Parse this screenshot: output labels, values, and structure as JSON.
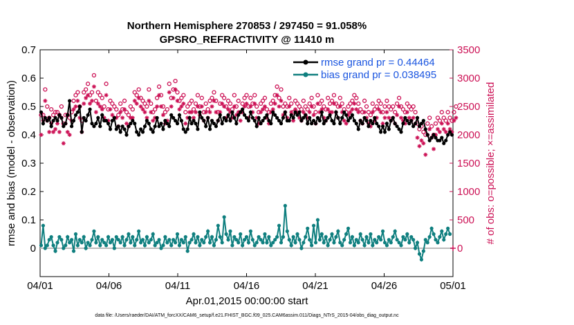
{
  "chart_data": {
    "type": "line",
    "title_line1": "Northern Hemisphere 270853 / 297450 = 91.058%",
    "title_line2": "GPSRO_REFRACTIVITY @ 11410 m",
    "xlabel": "Apr.01,2015 00:00:00 start",
    "ylabel": "rmse and bias (model - observation)",
    "ylabel_right": "# of obs: o=possible; ×=assimilated",
    "footer": "data file: /Users/raeder/DAI/ATM_forcXX/CAM6_setup/f.e21.FHIST_BGC.f09_025.CAM6assim.011/Diags_NTrS_2015-04/obs_diag_output.nc",
    "x_ticks": [
      "04/01",
      "04/06",
      "04/11",
      "04/16",
      "04/21",
      "04/26",
      "05/01"
    ],
    "xlim": [
      0,
      30
    ],
    "ylim": [
      -0.1,
      0.7
    ],
    "y_ticks": [
      "0",
      "0.1",
      "0.2",
      "0.3",
      "0.4",
      "0.5",
      "0.6",
      "0.7"
    ],
    "ylim_right": [
      -500,
      3500
    ],
    "y_ticks_right": [
      "0",
      "500",
      "1000",
      "1500",
      "2000",
      "2500",
      "3000",
      "3500"
    ],
    "legend": {
      "rmse_label": "rmse grand pr = 0.44464",
      "bias_label": "bias grand pr = 0.038495",
      "position": "top-right"
    },
    "colors": {
      "rmse": "#000000",
      "bias": "#0f7f7f",
      "obs": "#cc1155",
      "zero_line": "#bbbbbb"
    },
    "series": [
      {
        "name": "rmse",
        "values": [
          0.48,
          0.44,
          0.46,
          0.45,
          0.46,
          0.43,
          0.45,
          0.46,
          0.45,
          0.47,
          0.46,
          0.43,
          0.44,
          0.47,
          0.52,
          0.43,
          0.45,
          0.47,
          0.48,
          0.5,
          0.41,
          0.46,
          0.45,
          0.47,
          0.49,
          0.44,
          0.43,
          0.44,
          0.46,
          0.43,
          0.47,
          0.45,
          0.45,
          0.44,
          0.42,
          0.45,
          0.46,
          0.42,
          0.43,
          0.41,
          0.43,
          0.42,
          0.4,
          0.43,
          0.44,
          0.45,
          0.44,
          0.41,
          0.4,
          0.42,
          0.41,
          0.43,
          0.45,
          0.44,
          0.42,
          0.41,
          0.43,
          0.46,
          0.43,
          0.44,
          0.42,
          0.45,
          0.44,
          0.43,
          0.47,
          0.46,
          0.45,
          0.44,
          0.47,
          0.45,
          0.42,
          0.41,
          0.42,
          0.46,
          0.44,
          0.45,
          0.44,
          0.42,
          0.48,
          0.46,
          0.45,
          0.43,
          0.46,
          0.42,
          0.45,
          0.44,
          0.43,
          0.45,
          0.47,
          0.44,
          0.46,
          0.45,
          0.47,
          0.45,
          0.48,
          0.46,
          0.44,
          0.47,
          0.48,
          0.49,
          0.47,
          0.46,
          0.45,
          0.48,
          0.46,
          0.45,
          0.43,
          0.46,
          0.44,
          0.45,
          0.46,
          0.47,
          0.45,
          0.44,
          0.48,
          0.47,
          0.46,
          0.45,
          0.44,
          0.46,
          0.48,
          0.45,
          0.45,
          0.47,
          0.46,
          0.48,
          0.47,
          0.48,
          0.45,
          0.46,
          0.47,
          0.44,
          0.46,
          0.44,
          0.45,
          0.44,
          0.46,
          0.45,
          0.48,
          0.44,
          0.45,
          0.46,
          0.47,
          0.45,
          0.44,
          0.48,
          0.46,
          0.44,
          0.46,
          0.48,
          0.47,
          0.45,
          0.46,
          0.47,
          0.45,
          0.44,
          0.42,
          0.45,
          0.44,
          0.46,
          0.45,
          0.43,
          0.45,
          0.44,
          0.46,
          0.44,
          0.43,
          0.41,
          0.43,
          0.41,
          0.44,
          0.42,
          0.45,
          0.46,
          0.44,
          0.43,
          0.42,
          0.41,
          0.44,
          0.46,
          0.45,
          0.44,
          0.45,
          0.43,
          0.44,
          0.46,
          0.43,
          0.44,
          0.45,
          0.42,
          0.4,
          0.38,
          0.39,
          0.4,
          0.39,
          0.38,
          0.38,
          0.39,
          0.37,
          0.38,
          0.4,
          0.41,
          0.4
        ]
      },
      {
        "name": "bias",
        "values": [
          0.01,
          0.08,
          0.0,
          0.01,
          0.03,
          0.04,
          0.01,
          -0.01,
          0.02,
          0.04,
          0.03,
          0.0,
          0.01,
          0.04,
          0.02,
          0.03,
          -0.01,
          0.05,
          0.01,
          0.03,
          0.02,
          0.04,
          0.0,
          0.02,
          0.01,
          0.03,
          0.06,
          0.02,
          0.04,
          0.01,
          0.03,
          0.02,
          0.01,
          0.04,
          0.02,
          0.03,
          0.0,
          0.04,
          0.03,
          0.02,
          0.04,
          0.01,
          0.03,
          0.05,
          0.02,
          0.04,
          0.01,
          0.03,
          0.06,
          0.02,
          0.03,
          0.01,
          0.04,
          0.02,
          0.03,
          0.05,
          0.01,
          0.02,
          0.03,
          0.0,
          0.01,
          0.04,
          0.02,
          0.03,
          0.01,
          0.03,
          0.02,
          0.05,
          0.01,
          0.03,
          0.02,
          0.04,
          -0.01,
          0.02,
          0.03,
          0.05,
          0.02,
          0.04,
          0.01,
          0.03,
          0.02,
          0.04,
          0.06,
          0.02,
          0.04,
          0.01,
          0.03,
          0.08,
          0.04,
          0.02,
          0.11,
          0.05,
          0.03,
          0.06,
          0.01,
          0.04,
          0.03,
          0.02,
          0.05,
          0.01,
          0.03,
          0.04,
          0.02,
          0.06,
          0.03,
          0.01,
          0.02,
          0.04,
          0.03,
          0.02,
          0.05,
          0.02,
          0.04,
          0.01,
          0.02,
          0.03,
          0.04,
          0.08,
          0.02,
          0.04,
          0.15,
          0.06,
          0.03,
          0.01,
          0.04,
          0.02,
          0.05,
          0.03,
          0.0,
          0.02,
          0.04,
          0.07,
          0.03,
          0.01,
          0.08,
          0.02,
          0.1,
          0.03,
          0.05,
          0.02,
          0.04,
          0.01,
          0.03,
          0.05,
          0.02,
          0.04,
          0.06,
          0.02,
          0.01,
          0.03,
          0.05,
          0.07,
          0.02,
          0.04,
          0.01,
          0.03,
          0.02,
          0.05,
          0.03,
          0.01,
          0.04,
          0.02,
          0.05,
          0.01,
          0.03,
          0.02,
          0.04,
          0.03,
          0.06,
          0.02,
          0.01,
          0.03,
          0.02,
          0.04,
          0.06,
          0.03,
          0.02,
          0.01,
          0.04,
          0.03,
          0.05,
          0.02,
          0.04,
          0.03,
          0.0,
          0.02,
          -0.02,
          -0.04,
          -0.01,
          0.03,
          0.02,
          0.04,
          0.07,
          0.05,
          0.03,
          0.02,
          0.04,
          0.06,
          0.03,
          0.05,
          0.07,
          0.05
        ]
      },
      {
        "name": "obs_possible",
        "values": [
          2350,
          2350,
          2800,
          2500,
          2300,
          2450,
          2350,
          2400,
          2400,
          2350,
          2500,
          2200,
          2350,
          2350,
          2300,
          2400,
          2600,
          2700,
          2750,
          2500,
          2250,
          2750,
          2800,
          2900,
          2700,
          2750,
          3050,
          2600,
          2750,
          2700,
          2650,
          2500,
          2900,
          2450,
          2600,
          2550,
          2500,
          2450,
          2350,
          2550,
          2450,
          2600,
          2400,
          2350,
          2500,
          2450,
          2750,
          2700,
          2800,
          2650,
          2600,
          2550,
          2500,
          2800,
          2550,
          2400,
          2450,
          2650,
          2850,
          2700,
          2500,
          2400,
          2450,
          2900,
          2650,
          2800,
          2950,
          2750,
          2600,
          2650,
          2700,
          2400,
          2500,
          2550,
          2600,
          2450,
          2550,
          2700,
          2500,
          2650,
          2400,
          2550,
          2450,
          2600,
          2650,
          2750,
          2600,
          2400,
          2550,
          2700,
          2650,
          2500,
          2600,
          2550,
          2450,
          2700,
          2500,
          2600,
          2400,
          2550,
          2650,
          2700,
          2500,
          2650,
          2550,
          2700,
          2500,
          2400,
          2550,
          2600,
          2650,
          2450,
          2400,
          2550,
          2600,
          2700,
          2850,
          2650,
          2800,
          2500,
          2550,
          2500,
          2650,
          2550,
          2400,
          2600,
          2550,
          2500,
          2450,
          2600,
          2500,
          2450,
          2550,
          2650,
          2500,
          2400,
          2700,
          2550,
          2600,
          2500,
          2450,
          2650,
          2550,
          2600,
          2700,
          2550,
          2500,
          2650,
          2550,
          2450,
          2400,
          2500,
          2550,
          2600,
          2700,
          2650,
          2550,
          2450,
          2400,
          2600,
          2500,
          2400,
          2350,
          2550,
          2450,
          2500,
          2600,
          2550,
          2400,
          2500,
          2600,
          2500,
          2450,
          2500,
          2400,
          2550,
          2650,
          2500,
          2450,
          2400,
          2550,
          2500,
          2450,
          2500,
          2400,
          2200,
          2100,
          2150,
          2050,
          2000,
          2200,
          2300,
          2150,
          2000,
          2200,
          2300,
          2250,
          2400,
          2300,
          2250,
          2400,
          2300,
          2250,
          2400,
          2500
        ]
      },
      {
        "name": "obs_assimilated",
        "values": [
          2000,
          2250,
          2600,
          2250,
          2050,
          2200,
          2050,
          2100,
          2200,
          2050,
          2300,
          1850,
          2200,
          2050,
          2000,
          2250,
          2450,
          2500,
          2600,
          2300,
          2050,
          2550,
          2650,
          2700,
          2550,
          2600,
          2850,
          2400,
          2550,
          2500,
          2450,
          2300,
          2700,
          2250,
          2450,
          2350,
          2300,
          2300,
          2150,
          2400,
          2300,
          2450,
          2200,
          2150,
          2300,
          2300,
          2600,
          2550,
          2650,
          2500,
          2450,
          2400,
          2300,
          2600,
          2400,
          2250,
          2300,
          2500,
          2700,
          2500,
          2350,
          2200,
          2250,
          2750,
          2500,
          2650,
          2800,
          2600,
          2450,
          2500,
          2550,
          2200,
          2300,
          2400,
          2400,
          2300,
          2400,
          2500,
          2350,
          2500,
          2250,
          2400,
          2300,
          2400,
          2500,
          2600,
          2400,
          2250,
          2400,
          2550,
          2500,
          2300,
          2450,
          2400,
          2300,
          2500,
          2350,
          2400,
          2250,
          2400,
          2500,
          2550,
          2300,
          2500,
          2400,
          2550,
          2300,
          2200,
          2400,
          2450,
          2500,
          2300,
          2200,
          2400,
          2450,
          2550,
          2700,
          2500,
          2600,
          2350,
          2400,
          2300,
          2500,
          2400,
          2250,
          2450,
          2400,
          2300,
          2250,
          2400,
          2350,
          2300,
          2400,
          2500,
          2350,
          2200,
          2550,
          2400,
          2450,
          2300,
          2250,
          2450,
          2400,
          2400,
          2550,
          2400,
          2300,
          2500,
          2400,
          2250,
          2200,
          2350,
          2400,
          2450,
          2550,
          2450,
          2400,
          2250,
          2200,
          2400,
          2300,
          2200,
          2150,
          2400,
          2250,
          2300,
          2450,
          2400,
          2200,
          2300,
          2400,
          2300,
          2250,
          2300,
          2200,
          2350,
          2500,
          2300,
          2250,
          2200,
          2400,
          2300,
          2250,
          2300,
          2200,
          1950,
          1800,
          1900,
          1850,
          1650,
          2000,
          2100,
          1950,
          1750,
          2000,
          2100,
          2050,
          2200,
          2100,
          2050,
          2200,
          2100,
          2050,
          2250,
          2300
        ]
      }
    ]
  }
}
